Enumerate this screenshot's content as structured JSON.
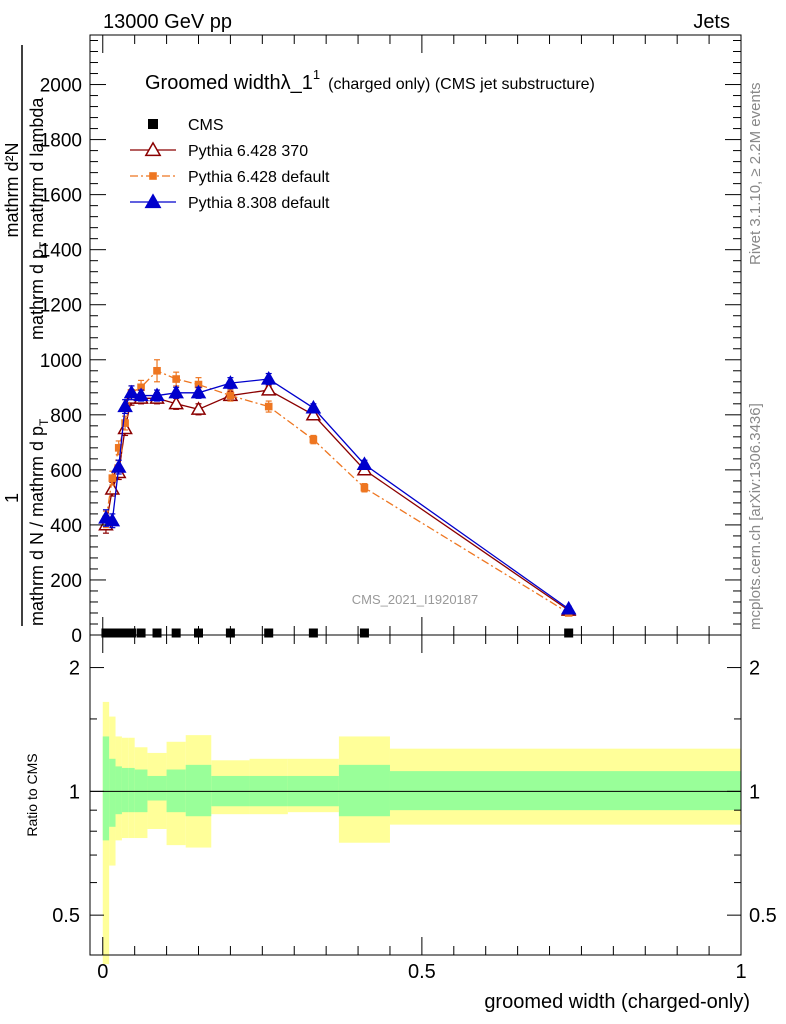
{
  "header": {
    "energy_label": "13000 GeV pp",
    "category_label": "Jets"
  },
  "side": {
    "rivet": "Rivet 3.1.10, ≥ 2.2M events",
    "mcplots": "mcplots.cern.ch [arXiv:1306.3436]"
  },
  "watermark": "CMS_2021_I1920187",
  "chart_data": [
    {
      "type": "line",
      "title": "Groomed widthλ_1",
      "title_sup": "1",
      "title_suffix": "(charged only) (CMS jet substructure)",
      "ylabel": {
        "frac_num": "1",
        "frac_den": "mathrm d N / mathrm d p",
        "frac_den_sub": "T",
        "dn_num": "mathrm d²N",
        "dn_den": "mathrm d p",
        "dn_den_sub": "T",
        "dn_den_tail": "mathrm d lambda"
      },
      "ylim": [
        0,
        2180
      ],
      "xlim": [
        -0.02,
        1.0
      ],
      "yticks": [
        "0",
        "200",
        "400",
        "600",
        "800",
        "1000",
        "1200",
        "1400",
        "1600",
        "1800",
        "2000"
      ],
      "ytick_values": [
        0,
        200,
        400,
        600,
        800,
        1000,
        1200,
        1400,
        1600,
        1800,
        2000
      ],
      "legend_position": "top-left",
      "series": [
        {
          "name": "CMS",
          "color": "#000000",
          "marker": "square",
          "x": [
            0.005,
            0.015,
            0.025,
            0.035,
            0.045,
            0.06,
            0.085,
            0.115,
            0.15,
            0.2,
            0.26,
            0.33,
            0.41,
            0.73
          ],
          "y": [
            0,
            0,
            0,
            0,
            0,
            0,
            0,
            0,
            0,
            0,
            0,
            0,
            0,
            0
          ]
        },
        {
          "name": "Pythia 6.428 370",
          "color": "#8b0000",
          "marker": "open-triangle",
          "x": [
            0.005,
            0.015,
            0.025,
            0.035,
            0.045,
            0.06,
            0.085,
            0.115,
            0.15,
            0.2,
            0.26,
            0.33,
            0.41,
            0.73
          ],
          "y": [
            400,
            530,
            590,
            750,
            860,
            860,
            860,
            840,
            820,
            870,
            890,
            800,
            600,
            90
          ],
          "err": [
            30,
            25,
            25,
            25,
            25,
            20,
            20,
            20,
            20,
            15,
            15,
            15,
            15,
            10
          ]
        },
        {
          "name": "Pythia 6.428 default",
          "color": "#ee7621",
          "marker": "square",
          "dash": "dashdot",
          "x": [
            0.005,
            0.015,
            0.025,
            0.035,
            0.045,
            0.06,
            0.085,
            0.115,
            0.15,
            0.2,
            0.26,
            0.33,
            0.41,
            0.73
          ],
          "y": [
            420,
            570,
            680,
            770,
            880,
            900,
            960,
            930,
            910,
            870,
            830,
            710,
            535,
            80
          ],
          "err": [
            30,
            25,
            25,
            25,
            25,
            25,
            40,
            25,
            25,
            20,
            20,
            15,
            15,
            10
          ]
        },
        {
          "name": "Pythia 8.308 default",
          "color": "#0000cc",
          "marker": "triangle",
          "x": [
            0.005,
            0.015,
            0.025,
            0.035,
            0.045,
            0.06,
            0.085,
            0.115,
            0.15,
            0.2,
            0.26,
            0.33,
            0.41,
            0.73
          ],
          "y": [
            425,
            415,
            610,
            830,
            880,
            870,
            870,
            880,
            880,
            915,
            930,
            825,
            620,
            95
          ],
          "err": [
            30,
            25,
            25,
            25,
            25,
            20,
            20,
            20,
            20,
            20,
            20,
            15,
            15,
            10
          ]
        }
      ]
    },
    {
      "type": "area",
      "ylabel": "Ratio to CMS",
      "xlabel": "groomed width (charged-only)",
      "ylim": [
        0.4,
        2.4
      ],
      "log_y": true,
      "xlim": [
        -0.02,
        1.0
      ],
      "yticks": [
        "0.5",
        "1",
        "2"
      ],
      "ytick_values": [
        0.5,
        1,
        2
      ],
      "xticks": [
        "0",
        "0.5",
        "1"
      ],
      "xtick_values": [
        0,
        0.5,
        1
      ],
      "reference_line": 1,
      "bins": [
        0.0,
        0.01,
        0.02,
        0.03,
        0.04,
        0.05,
        0.07,
        0.1,
        0.13,
        0.17,
        0.23,
        0.29,
        0.37,
        0.45,
        1.0
      ],
      "band_outer": {
        "color": "#ffff99",
        "lo": [
          0.38,
          0.66,
          0.76,
          0.77,
          0.77,
          0.77,
          0.81,
          0.74,
          0.73,
          0.88,
          0.88,
          0.89,
          0.75,
          0.83
        ],
        "hi": [
          1.65,
          1.52,
          1.36,
          1.35,
          1.35,
          1.28,
          1.24,
          1.32,
          1.37,
          1.19,
          1.2,
          1.2,
          1.36,
          1.27
        ]
      },
      "band_inner": {
        "color": "#99ff99",
        "lo": [
          0.76,
          0.82,
          0.88,
          0.89,
          0.89,
          0.89,
          0.95,
          0.89,
          0.87,
          0.92,
          0.92,
          0.92,
          0.87,
          0.9
        ],
        "hi": [
          1.36,
          1.2,
          1.15,
          1.14,
          1.14,
          1.13,
          1.09,
          1.13,
          1.16,
          1.09,
          1.09,
          1.09,
          1.16,
          1.12
        ]
      }
    }
  ]
}
